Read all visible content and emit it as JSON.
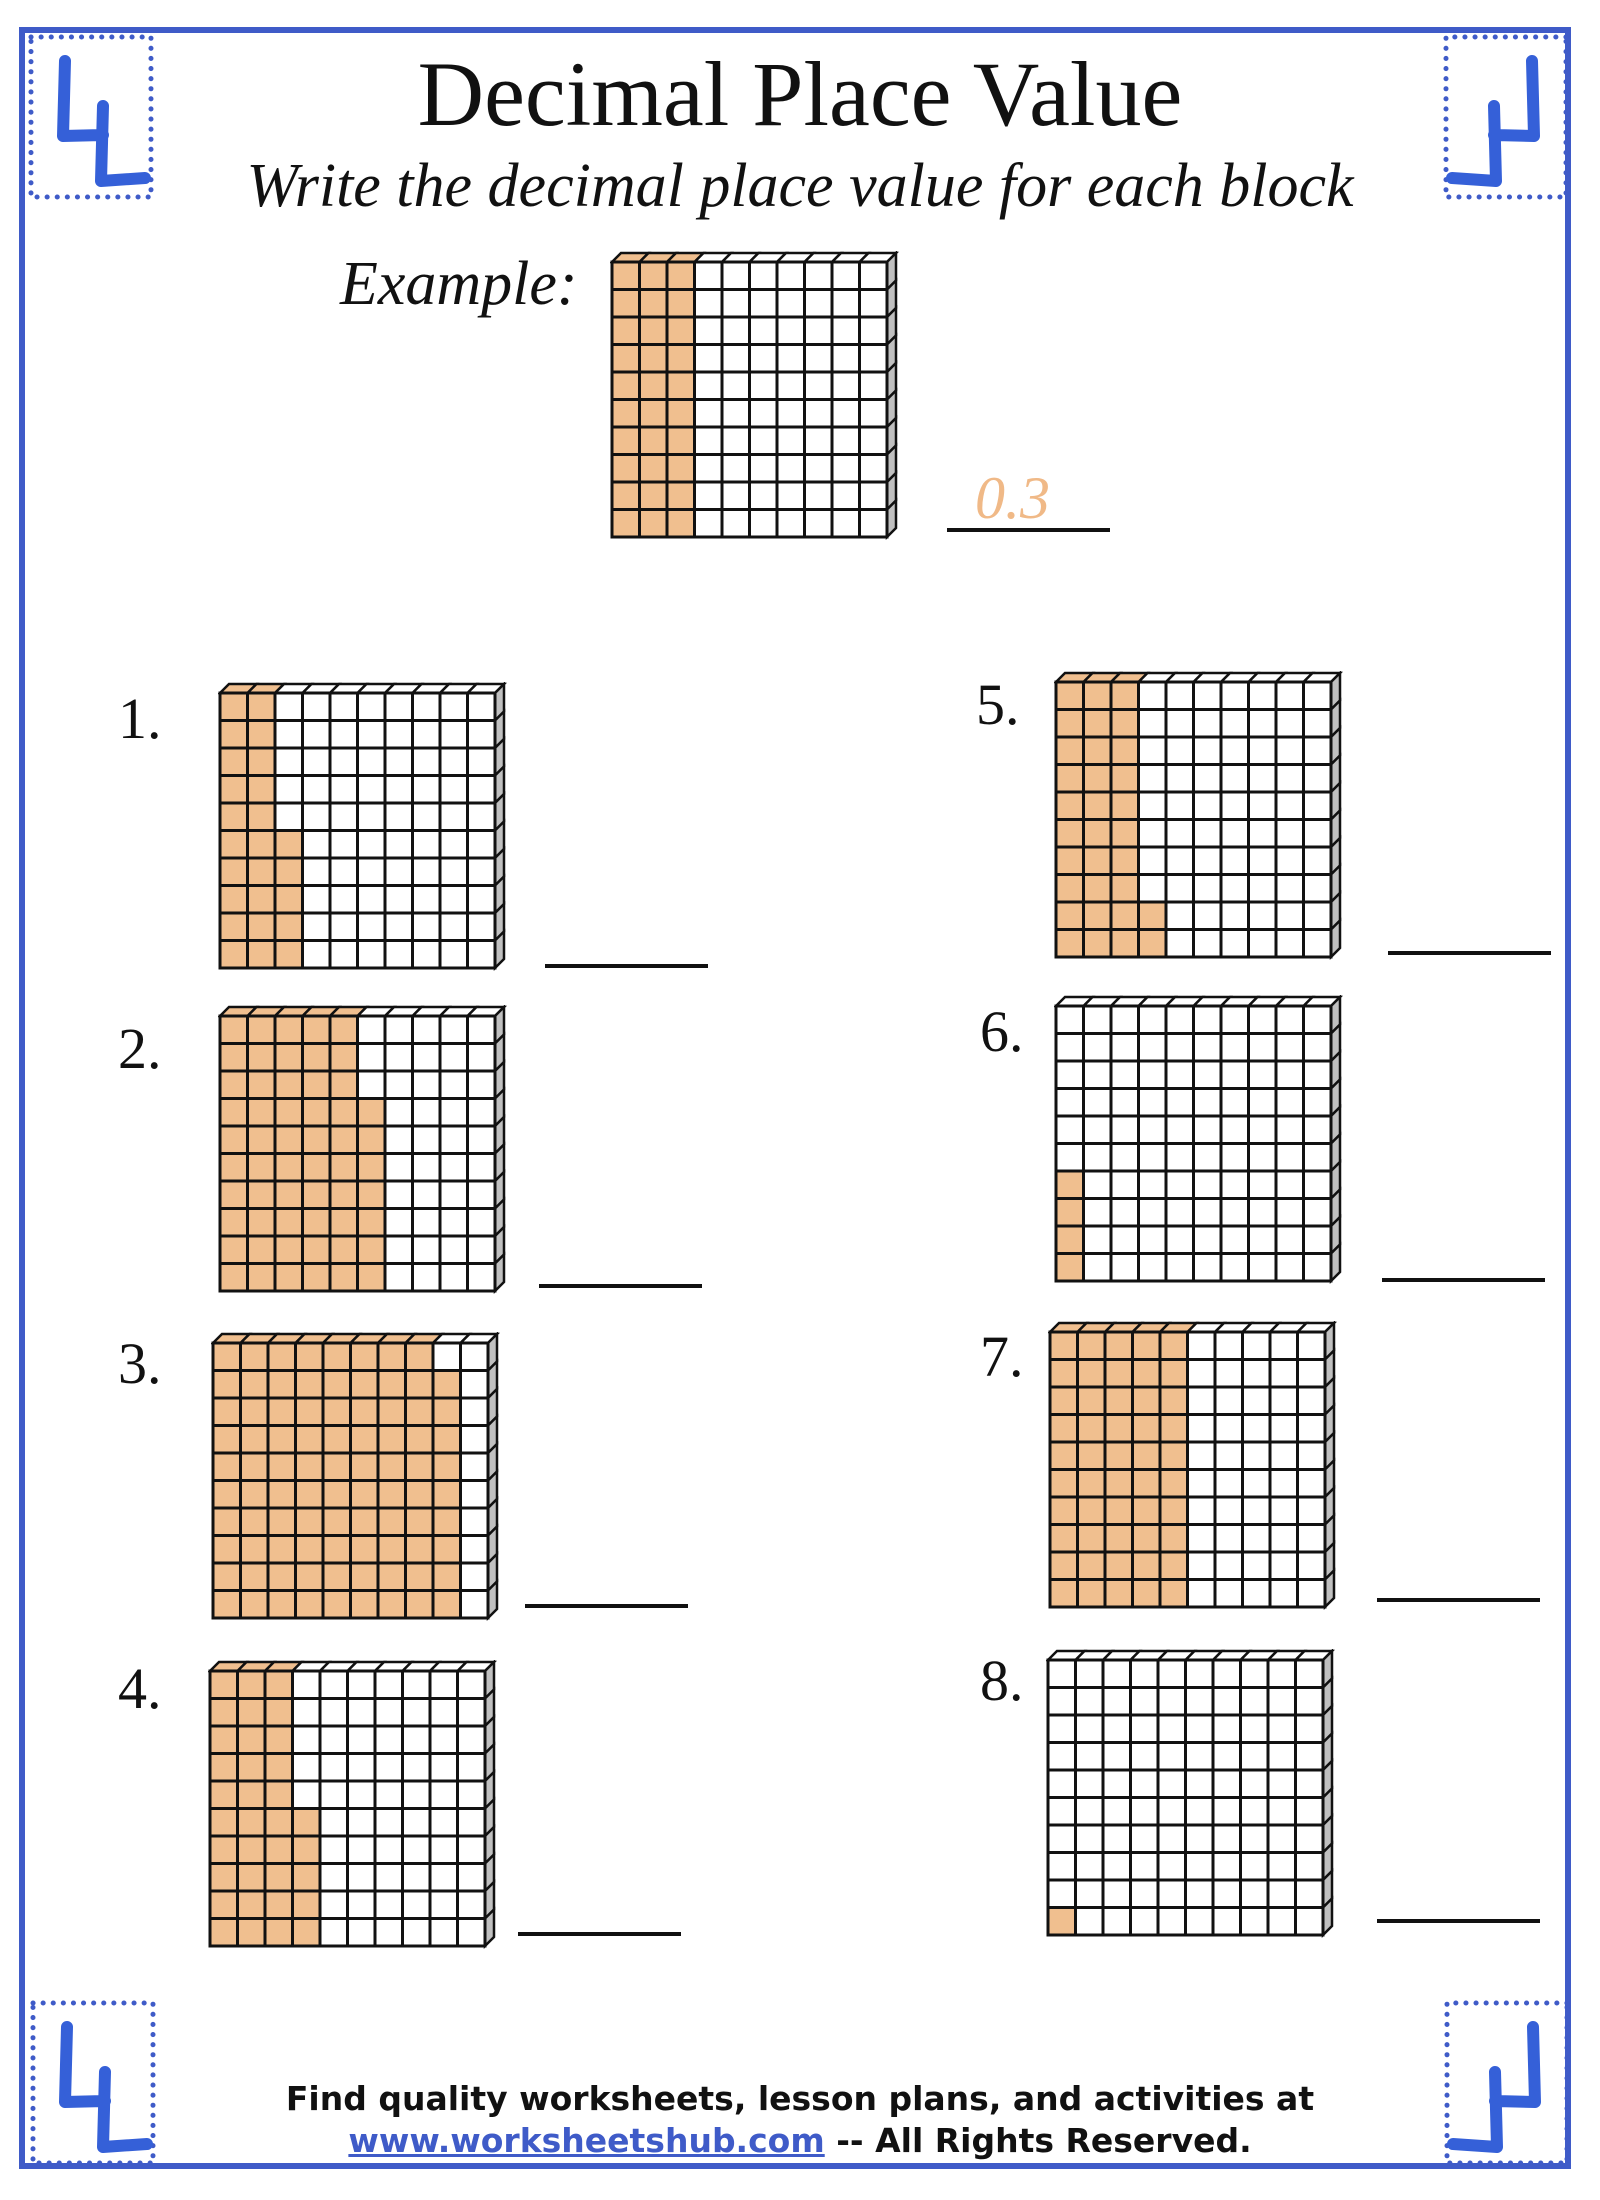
{
  "title": "Decimal Place Value",
  "subtitle": "Write the decimal place value for each block",
  "example": {
    "label": "Example:",
    "filled_hundredths": 30,
    "answer": "0.3"
  },
  "problems": [
    {
      "number": "1.",
      "filled_hundredths": 25
    },
    {
      "number": "2.",
      "filled_hundredths": 57
    },
    {
      "number": "3.",
      "filled_hundredths": 89
    },
    {
      "number": "4.",
      "filled_hundredths": 35
    },
    {
      "number": "5.",
      "filled_hundredths": 32
    },
    {
      "number": "6.",
      "filled_hundredths": 4
    },
    {
      "number": "7.",
      "filled_hundredths": 50
    },
    {
      "number": "8.",
      "filled_hundredths": 1
    }
  ],
  "footer": {
    "line1": "Find quality worksheets, lesson plans, and activities at",
    "link": "www.worksheetshub.com",
    "rights": " -- All Rights Reserved."
  },
  "colors": {
    "frame": "#3f5bc8",
    "fill": "#f0bf8f",
    "grid_line": "#111111",
    "side": "#c0c0c0",
    "answer": "#f0b987"
  }
}
